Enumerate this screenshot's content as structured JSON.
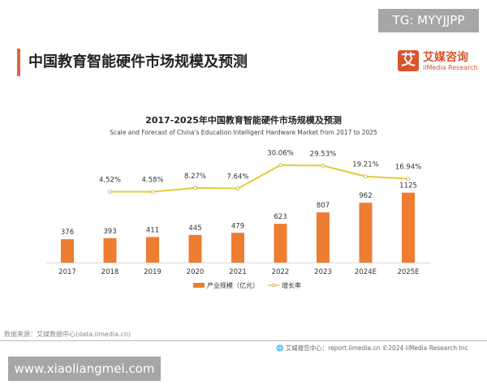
{
  "watermark_top": "TG: MYYJJPP",
  "watermark_bottom": "www.xiaoliangmei.com",
  "page_title": "中国教育智能硬件市场规模及预测",
  "logo": {
    "mark": "艾",
    "cn": "艾媒咨询",
    "en": "iiMedia Research"
  },
  "source": "数据来源：艾媒数据中心(data.iimedia.cn)",
  "footer": "艾媒报告中心：report.iimedia.cn    ©2024  iiMedia Research  Inc",
  "colors": {
    "bar": "#ED7D31",
    "line": "#E6C83A",
    "accent": "#E0673A"
  },
  "chart_data": {
    "type": "bar+line",
    "title": "2017-2025年中国教育智能硬件市场规模及预测",
    "subtitle": "Scale and Forecast of China's Education Intelligent Hardware Market from 2017 to 2025",
    "categories": [
      "2017",
      "2018",
      "2019",
      "2020",
      "2021",
      "2022",
      "2023",
      "2024E",
      "2025E"
    ],
    "series": [
      {
        "name": "产业规模（亿元）",
        "type": "bar",
        "values": [
          376,
          393,
          411,
          445,
          479,
          623,
          807,
          962,
          1125
        ],
        "labels": [
          "376",
          "393",
          "411",
          "445",
          "479",
          "623",
          "807",
          "962",
          "1125"
        ]
      },
      {
        "name": "增长率",
        "type": "line",
        "values": [
          null,
          4.52,
          4.58,
          8.27,
          7.64,
          30.06,
          29.53,
          19.21,
          16.94
        ],
        "labels": [
          "",
          "4.52%",
          "4.58%",
          "8.27%",
          "7.64%",
          "30.06%",
          "29.53%",
          "19.21%",
          "16.94%"
        ]
      }
    ],
    "grid": false,
    "legend_position": "bottom"
  }
}
